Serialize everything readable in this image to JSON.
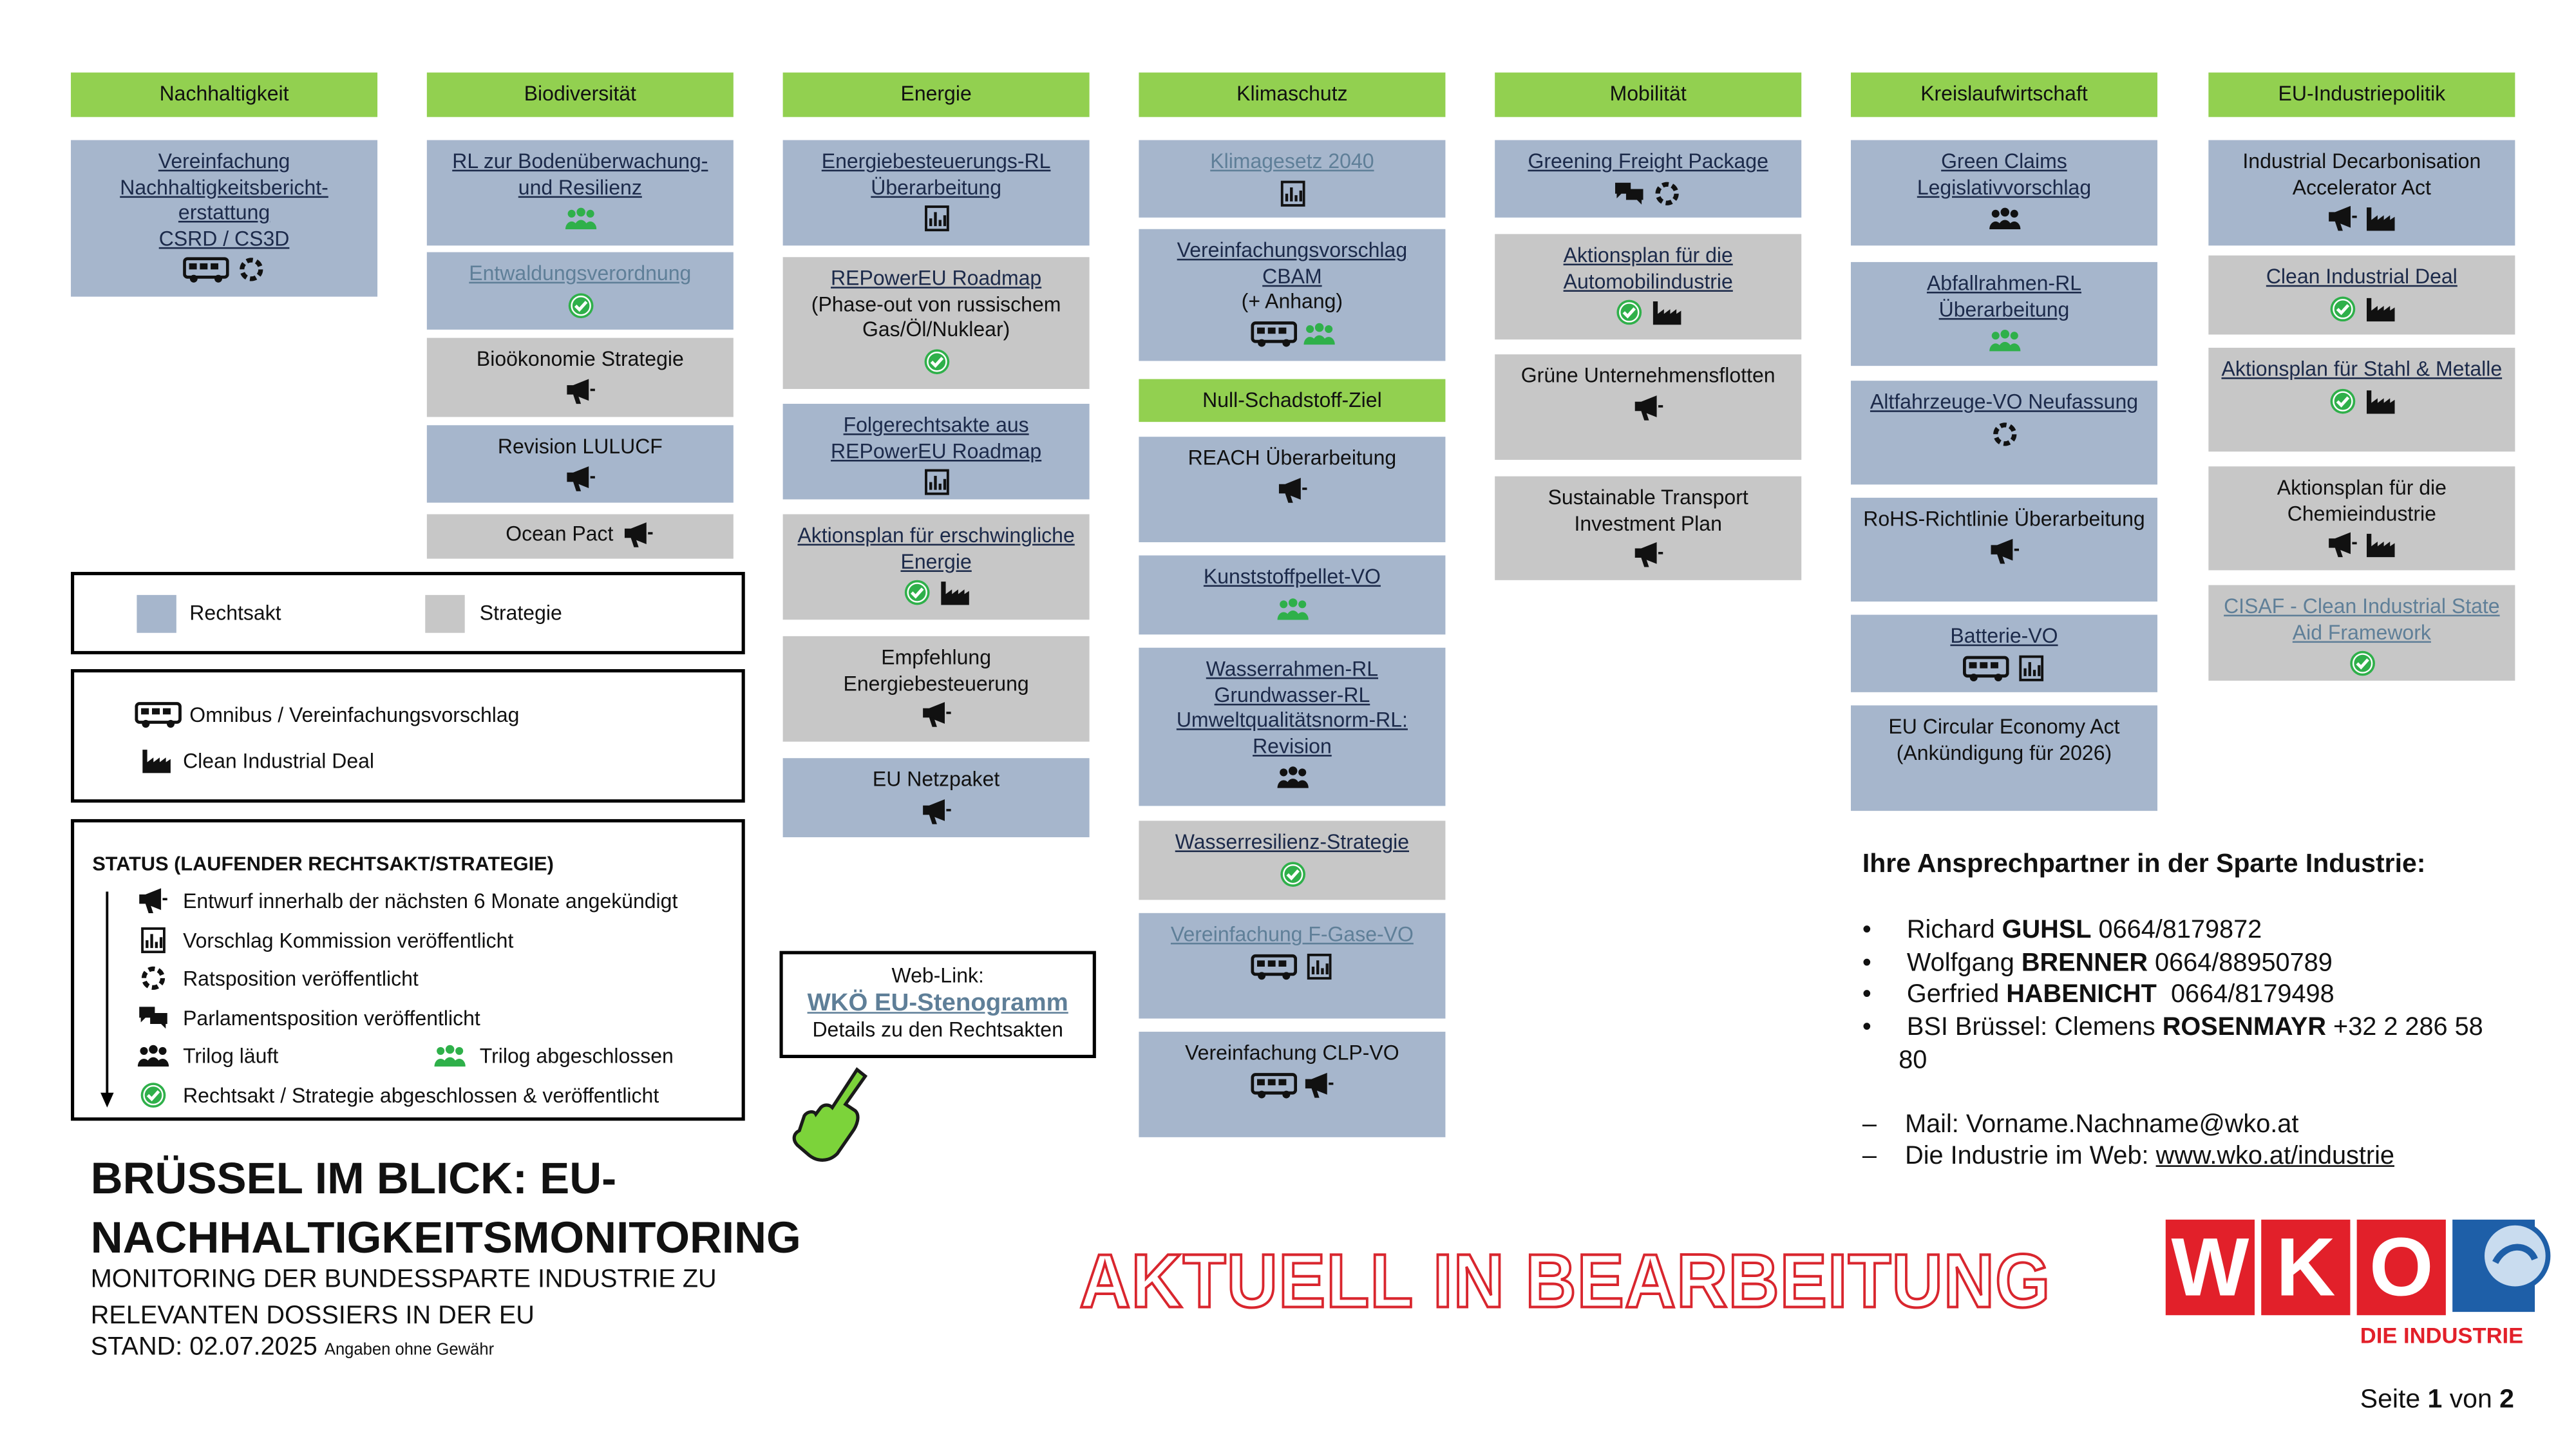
{
  "columns": [
    {
      "header": "Nachhaltigkeit",
      "items": [
        {
          "text": "Vereinfachung Nachhaltigkeitsbericht-erstattung",
          "note": "CSRD / CS3D"
        }
      ]
    },
    {
      "header": "Biodiversität",
      "items": [
        {
          "text": "RL zur Bodenüberwachung- und Resilienz"
        },
        {
          "text": "Entwaldungsverordnung"
        },
        {
          "text": "Bioökonomie Strategie"
        },
        {
          "text": "Revision LULUCF"
        },
        {
          "text": "Ocean Pact"
        }
      ]
    },
    {
      "header": "Energie",
      "items": [
        {
          "text": "Energiebesteuerungs-RL Überarbeitung"
        },
        {
          "text": "REPowerEU Roadmap",
          "note": "(Phase-out von russischem Gas/Öl/Nuklear)"
        },
        {
          "text": "Folgerechtsakte aus REPowerEU Roadmap"
        },
        {
          "text": "Aktionsplan für erschwingliche Energie"
        },
        {
          "text": "Empfehlung Energiebesteuerung"
        },
        {
          "text": "EU Netzpaket"
        }
      ]
    },
    {
      "header": "Klimaschutz",
      "items": [
        {
          "text": "Klimagesetz 2040"
        },
        {
          "text": "Vereinfachungsvorschlag CBAM",
          "note": "(+ Anhang)"
        }
      ],
      "subheader": "Null-Schadstoff-Ziel",
      "sub_items": [
        {
          "text": "REACH Überarbeitung"
        },
        {
          "text": "Kunststoffpellet-VO"
        },
        {
          "text": "Wasserrahmen-RL Grundwasser-RL Umweltqualitätsnorm-RL: Revision"
        },
        {
          "text": "Wasserresilienz-Strategie"
        },
        {
          "text": "Vereinfachung F-Gase-VO"
        },
        {
          "text": "Vereinfachung CLP-VO"
        }
      ]
    },
    {
      "header": "Mobilität",
      "items": [
        {
          "text": "Greening Freight Package"
        },
        {
          "text": "Aktionsplan für die Automobilindustrie"
        },
        {
          "text": "Grüne Unternehmensflotten"
        },
        {
          "text": "Sustainable Transport Investment Plan"
        }
      ]
    },
    {
      "header": "Kreislaufwirtschaft",
      "items": [
        {
          "text": "Green Claims Legislativvorschlag"
        },
        {
          "text": "Abfallrahmen-RL Überarbeitung"
        },
        {
          "text": "Altfahrzeuge-VO Neufassung"
        },
        {
          "text": "RoHS-Richtlinie Überarbeitung"
        },
        {
          "text": "Batterie-VO"
        },
        {
          "text": "EU Circular Economy Act",
          "note": "(Ankündigung für 2026)"
        }
      ]
    },
    {
      "header": "EU-Industriepolitik",
      "items": [
        {
          "text": "Industrial Decarbonisation Accelerator Act"
        },
        {
          "text": "Clean Industrial Deal"
        },
        {
          "text": "Aktionsplan für Stahl & Metalle"
        },
        {
          "text": "Aktionsplan für die Chemieindustrie"
        },
        {
          "text": "CISAF - Clean Industrial State Aid Framework"
        }
      ]
    }
  ],
  "legend": {
    "types": [
      "Rechtsakt",
      "Strategie"
    ],
    "initiatives": [
      "Omnibus / Vereinfachungsvorschlag",
      "Clean Industrial Deal"
    ],
    "status_title": "STATUS (LAUFENDER RECHTSAKT/STRATEGIE)",
    "status": [
      "Entwurf innerhalb der nächsten 6 Monate angekündigt",
      "Vorschlag Kommission veröffentlicht",
      "Ratsposition veröffentlicht",
      "Parlamentsposition veröffentlicht",
      "Trilog läuft",
      "Trilog abgeschlossen",
      "Rechtsakt / Strategie abgeschlossen & veröffentlicht"
    ]
  },
  "weblink": {
    "label": "Web-Link:",
    "link": "WKÖ EU-Stenogramm",
    "description": "Details zu den Rechtsakten"
  },
  "title": {
    "main": "BRÜSSEL IM BLICK: EU-NACHHALTIGKEITSMONITORING",
    "subtitle": "MONITORING DER BUNDESSPARTE INDUSTRIE ZU RELEVANTEN DOSSIERS IN DER EU",
    "date": "STAND: 02.07.2025",
    "disclaimer": "Angaben ohne Gewähr"
  },
  "stamp": "AKTUELL IN BEARBEITUNG",
  "contacts": {
    "heading": "Ihre Ansprechpartner in der Sparte Industrie:",
    "persons": [
      {
        "first": "Richard",
        "last": "GUHSL",
        "phone": "0664/8179872"
      },
      {
        "first": "Wolfgang",
        "last": "BRENNER",
        "phone": "0664/88950789"
      },
      {
        "first": "Gerfried",
        "last": "HABENICHT",
        "phone": "0664/8179498"
      },
      {
        "first": "BSI Brüssel: Clemens",
        "last": "ROSENMAYR",
        "phone": "+32 2 286 58 80"
      }
    ],
    "mail": "Mail: Vorname.Nachname@wko.at",
    "web_label": "Die Industrie im Web:",
    "web_url": "www.wko.at/industrie"
  },
  "logo": {
    "letters": [
      "W",
      "K",
      "O"
    ],
    "subtitle": "DIE INDUSTRIE"
  },
  "footer": {
    "page_label": "Seite",
    "current": "1",
    "of": "von",
    "total": "2"
  }
}
